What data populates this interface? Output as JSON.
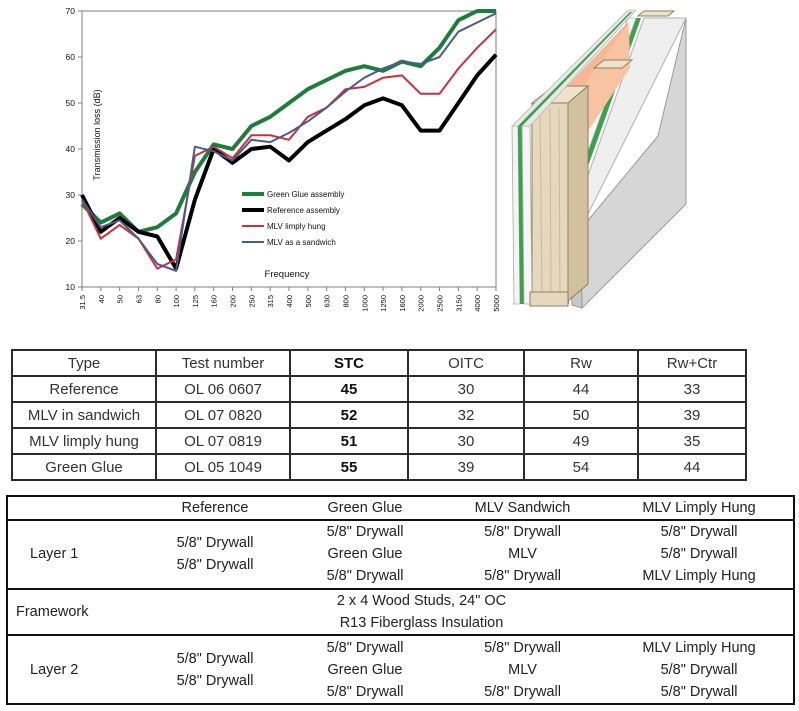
{
  "chart_data": {
    "type": "line",
    "title": "",
    "xlabel": "Frequency",
    "ylabel": "Transmission loss (dB)",
    "ylim": [
      10,
      70
    ],
    "yticks": [
      10,
      20,
      30,
      40,
      50,
      60,
      70
    ],
    "categories": [
      "31.5",
      "40",
      "50",
      "63",
      "80",
      "100",
      "125",
      "160",
      "200",
      "250",
      "315",
      "400",
      "500",
      "630",
      "800",
      "1000",
      "1250",
      "1600",
      "2000",
      "2500",
      "3150",
      "4000",
      "5000"
    ],
    "legend_position": "center-bottom",
    "series": [
      {
        "name": "Green Glue assembly",
        "color": "#1e7d3a",
        "width": 4,
        "values": [
          28,
          24,
          26,
          22,
          23,
          26,
          35,
          41,
          40,
          45,
          47,
          50,
          53,
          55,
          57,
          58,
          57,
          59,
          58,
          62,
          68,
          70,
          70
        ]
      },
      {
        "name": "Reference assembly",
        "color": "#000000",
        "width": 4,
        "values": [
          30,
          22,
          25,
          22,
          21,
          14,
          29,
          40,
          37,
          40,
          40.5,
          37.5,
          41.5,
          44,
          46.5,
          49.5,
          51,
          49.5,
          44,
          44,
          50,
          56,
          60.5
        ]
      },
      {
        "name": "MLV limply hung",
        "color": "#c8323a",
        "width": 2,
        "values": [
          29,
          20.5,
          23.5,
          20.5,
          14,
          16,
          38.5,
          40.5,
          38,
          43,
          43,
          42,
          47,
          49,
          53,
          53.5,
          55.5,
          56,
          52,
          52,
          57.5,
          62,
          66
        ]
      },
      {
        "name": "MLV as a sandwich",
        "color": "#4a5a8c",
        "width": 2,
        "values": [
          29,
          23,
          24.5,
          20.5,
          15,
          13.5,
          40.5,
          39.5,
          37.5,
          42,
          41.5,
          43.5,
          46,
          49,
          52.5,
          55.5,
          57.5,
          59,
          58.5,
          60,
          65.5,
          67.5,
          69.5
        ]
      }
    ]
  },
  "stc_table": {
    "headers": [
      "Type",
      "Test number",
      "STC",
      "OITC",
      "Rw",
      "Rw+Ctr"
    ],
    "rows": [
      [
        "Reference",
        "OL 06 0607",
        "45",
        "30",
        "44",
        "33"
      ],
      [
        "MLV in sandwich",
        "OL 07 0820",
        "52",
        "32",
        "50",
        "39"
      ],
      [
        "MLV limply hung",
        "OL 07 0819",
        "51",
        "30",
        "49",
        "35"
      ],
      [
        "Green Glue",
        "OL 05 1049",
        "55",
        "39",
        "54",
        "44"
      ]
    ]
  },
  "layer_table": {
    "headers": [
      "Reference",
      "Green Glue",
      "MLV Sandwich",
      "MLV Limply Hung"
    ],
    "layer1": {
      "label": "Layer 1",
      "reference": [
        "5/8\" Drywall",
        "5/8\" Drywall"
      ],
      "green_glue": [
        "5/8\" Drywall",
        "Green Glue",
        "5/8\" Drywall"
      ],
      "mlv_sandwich": [
        "5/8\" Drywall",
        "MLV",
        "5/8\" Drywall"
      ],
      "mlv_limply": [
        "5/8\" Drywall",
        "5/8\" Drywall",
        "MLV Limply Hung"
      ]
    },
    "framework": {
      "label": "Framework",
      "lines": [
        "2 x 4 Wood Studs, 24\" OC",
        "R13 Fiberglass Insulation"
      ]
    },
    "layer2": {
      "label": "Layer 2",
      "reference": [
        "5/8\" Drywall",
        "5/8\" Drywall"
      ],
      "green_glue": [
        "5/8\" Drywall",
        "Green Glue",
        "5/8\" Drywall"
      ],
      "mlv_sandwich": [
        "5/8\" Drywall",
        "MLV",
        "5/8\" Drywall"
      ],
      "mlv_limply": [
        "MLV Limply Hung",
        "5/8\" Drywall",
        "5/8\" Drywall"
      ]
    }
  }
}
